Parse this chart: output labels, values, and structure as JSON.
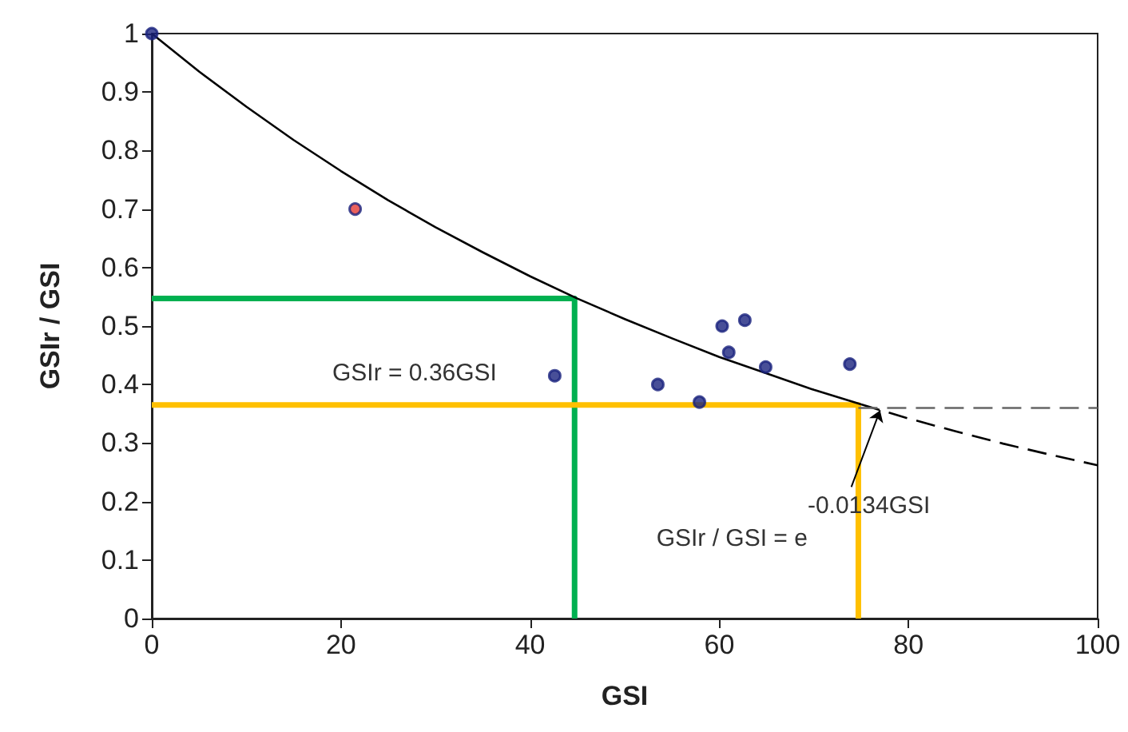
{
  "chart_data": {
    "type": "scatter",
    "xlabel": "GSI",
    "ylabel": "GSIr / GSI",
    "xlim": [
      0,
      100
    ],
    "xticks": [
      0,
      20,
      40,
      60,
      80,
      100
    ],
    "ylim": [
      0,
      1
    ],
    "yticks": [
      0,
      0.1,
      0.2,
      0.3,
      0.4,
      0.5,
      0.6,
      0.7,
      0.8,
      0.9,
      1
    ],
    "annotations": [
      {
        "text": "GSIr = 0.36GSI",
        "x": 25,
        "y": 0.365
      },
      {
        "text": "GSIr / GSI = e$^{-0.0134GSI}$",
        "x": 77,
        "y": 0.356
      }
    ],
    "series": [
      {
        "marker": "circle",
        "color": "#1a237e",
        "x": [
          0,
          21.5,
          42.6,
          53.5,
          57.9,
          60.3,
          62.7,
          61.0,
          64.9,
          73.8
        ],
        "values": [
          1,
          0.7,
          0.415,
          0.4,
          0.37,
          0.5,
          0.51,
          0.455,
          0.43,
          0.435
        ],
        "colors": [
          "#1a237e",
          "#e53935",
          "#1a237e",
          "#1a237e",
          "#1a237e",
          "#1a237e",
          "#1a237e",
          "#1a237e",
          "#1a237e",
          "#1a237e"
        ]
      },
      {
        "type": "line",
        "marker": "none",
        "color": "#000000",
        "x": [
          0,
          5,
          10,
          15,
          20,
          25,
          30,
          35,
          40,
          45,
          50,
          55,
          60,
          65,
          70,
          75
        ],
        "values": [
          1,
          0.935,
          0.875,
          0.818,
          0.765,
          0.715,
          0.669,
          0.626,
          0.585,
          0.547,
          0.512,
          0.479,
          0.447,
          0.419,
          0.391,
          0.366
        ]
      },
      {
        "type": "line",
        "marker": "none",
        "line_style": "dashed",
        "color": "#000000",
        "x": [
          75,
          80,
          85,
          90,
          95,
          100
        ],
        "values": [
          0.366,
          0.342,
          0.32,
          0.299,
          0.28,
          0.262
        ]
      },
      {
        "type": "line",
        "marker": "none",
        "color": "#00b050",
        "x": [
          0,
          44.7,
          44.7
        ],
        "values": [
          0.547,
          0.547,
          0
        ]
      },
      {
        "type": "line",
        "marker": "none",
        "color": "#ffc000",
        "x": [
          0,
          74.7,
          74.7
        ],
        "values": [
          0.365,
          0.365,
          0
        ]
      },
      {
        "type": "line",
        "marker": "none",
        "line_style": "dashed",
        "color": "#666666",
        "x": [
          74.7,
          100
        ],
        "values": [
          0.36,
          0.36
        ]
      }
    ]
  }
}
